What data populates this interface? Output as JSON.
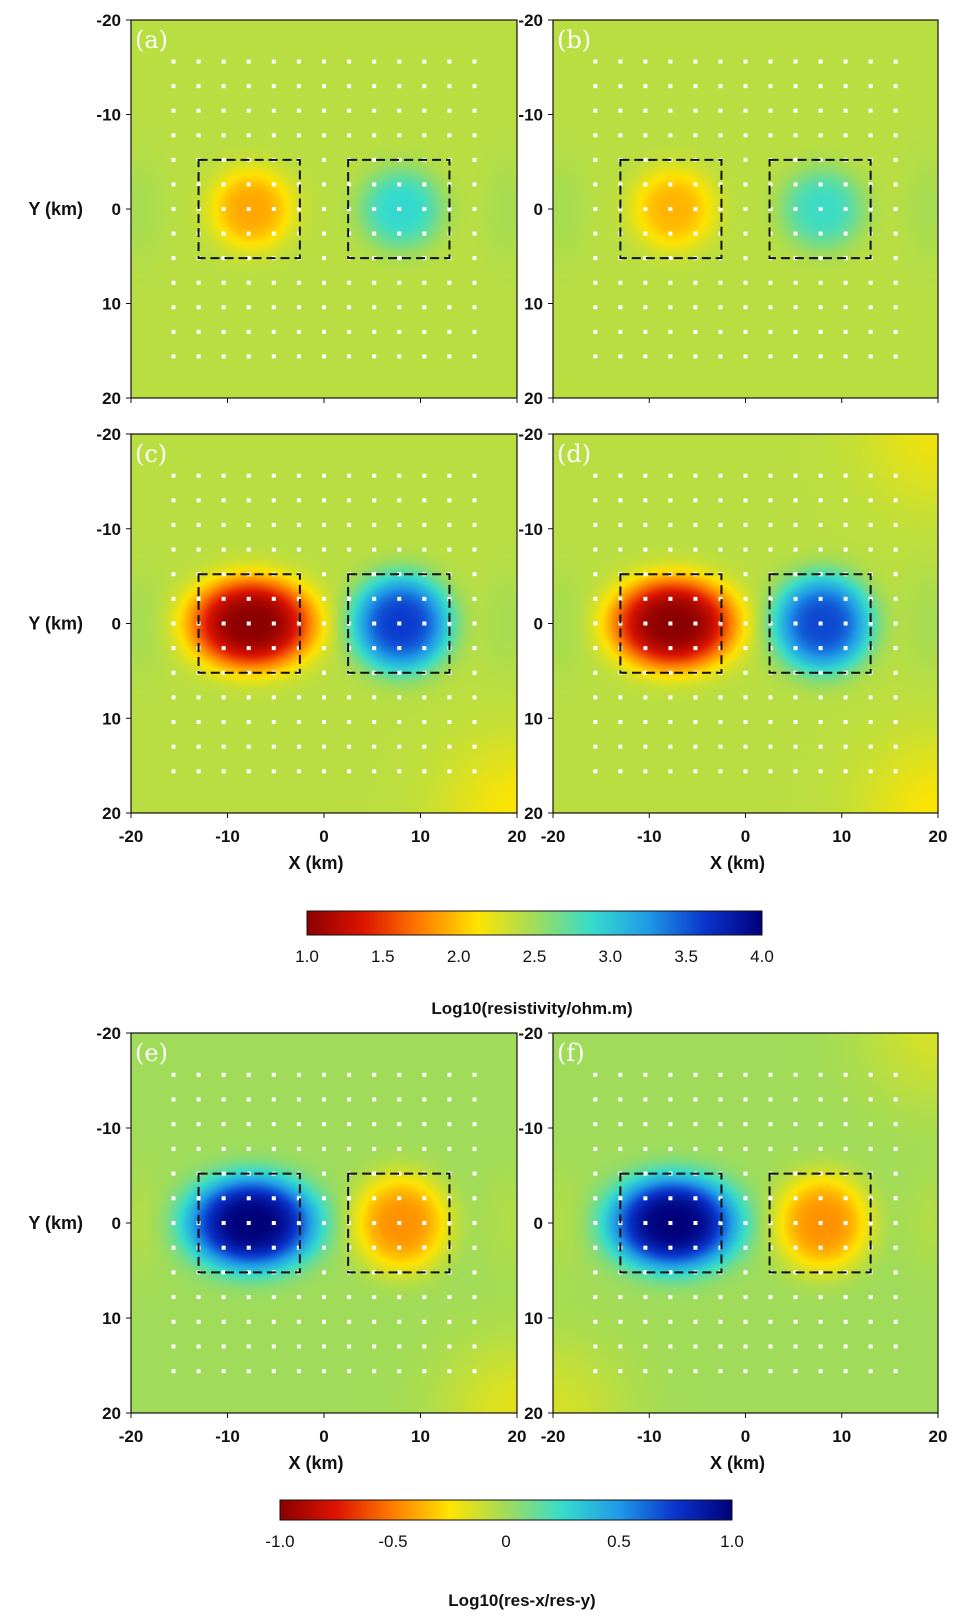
{
  "chart_data": {
    "type": "heatmap",
    "grid": false,
    "panels": [
      {
        "label": "(a)",
        "colorscale": "res",
        "left": {
          "center": [
            -7.5,
            0
          ],
          "value": 1.9,
          "spread": [
            4.2,
            4.2
          ]
        },
        "right": {
          "center": [
            8,
            0
          ],
          "value": 2.9,
          "spread": [
            4.2,
            4.2
          ]
        },
        "tint": [
          0,
          0,
          0,
          0
        ],
        "ylabel": "Y (km)",
        "xlabel": ""
      },
      {
        "label": "(b)",
        "colorscale": "res",
        "left": {
          "center": [
            -7.5,
            0
          ],
          "value": 1.95,
          "spread": [
            4.2,
            4.2
          ]
        },
        "right": {
          "center": [
            8,
            0
          ],
          "value": 2.85,
          "spread": [
            4.2,
            4.2
          ]
        },
        "tint": [
          0,
          0,
          0,
          0
        ],
        "ylabel": "",
        "xlabel": ""
      },
      {
        "label": "(c)",
        "colorscale": "res",
        "left": {
          "center": [
            -7.5,
            0
          ],
          "value": 1.0,
          "spread": [
            6.3,
            4.7
          ]
        },
        "right": {
          "center": [
            8,
            0
          ],
          "value": 3.6,
          "spread": [
            5.0,
            5.0
          ]
        },
        "tint": [
          0,
          0,
          0,
          0.25
        ],
        "ylabel": "Y (km)",
        "xlabel": "X (km)"
      },
      {
        "label": "(d)",
        "colorscale": "res",
        "left": {
          "center": [
            -7.5,
            0
          ],
          "value": 1.0,
          "spread": [
            6.3,
            4.7
          ]
        },
        "right": {
          "center": [
            8,
            0
          ],
          "value": 3.55,
          "spread": [
            5.0,
            5.0
          ]
        },
        "tint": [
          0,
          0.2,
          0,
          0.25
        ],
        "ylabel": "",
        "xlabel": "X (km)"
      },
      {
        "label": "(e)",
        "colorscale": "ratio",
        "left": {
          "center": [
            -7.5,
            0
          ],
          "value": 1.0,
          "spread": [
            6.5,
            4.8
          ]
        },
        "right": {
          "center": [
            8,
            0
          ],
          "value": -0.45,
          "spread": [
            4.8,
            5.0
          ]
        },
        "tint": [
          0,
          0,
          0,
          0.25
        ],
        "ylabel": "Y (km)",
        "xlabel": "X (km)"
      },
      {
        "label": "(f)",
        "colorscale": "ratio",
        "left": {
          "center": [
            -7.5,
            0
          ],
          "value": 1.0,
          "spread": [
            6.5,
            4.8
          ]
        },
        "right": {
          "center": [
            8,
            0
          ],
          "value": -0.45,
          "spread": [
            4.8,
            5.0
          ]
        },
        "tint": [
          0,
          0.2,
          0.2,
          0
        ],
        "ylabel": "",
        "xlabel": "X (km)"
      }
    ],
    "xlim": [
      -20,
      20
    ],
    "ylim": [
      -20,
      20
    ],
    "xticks": [
      "-20",
      "-10",
      "0",
      "10",
      "20"
    ],
    "yticks": [
      "-20",
      "-10",
      "0",
      "10",
      "20"
    ],
    "stations": {
      "x_from": -15.6,
      "x_to": 15.6,
      "x_step": 2.6,
      "y_from": -15.6,
      "y_to": 15.6,
      "y_step": 2.6,
      "gap_rows": [
        -2.6,
        0,
        2.6
      ]
    },
    "anomaly_boxes": [
      {
        "x": [
          -13,
          -2.5
        ],
        "y": [
          -5.2,
          5.2
        ]
      },
      {
        "x": [
          2.5,
          13
        ],
        "y": [
          -5.2,
          5.2
        ]
      }
    ],
    "colorbars": [
      {
        "title": "Log10(resistivity/ohm.m)",
        "range": [
          1.0,
          4.0
        ],
        "ticks": [
          "1.0",
          "1.5",
          "2.0",
          "2.5",
          "3.0",
          "3.5",
          "4.0"
        ],
        "background_value": 2.4
      },
      {
        "title": "Log10(res-x/res-y)",
        "range": [
          -1.0,
          1.0
        ],
        "ticks": [
          "-1.0",
          "-0.5",
          "0",
          "0.5",
          "1.0"
        ],
        "background_value": 0.0
      }
    ]
  },
  "colors": {
    "stops": [
      "#8b0000",
      "#dd1400",
      "#ff7d00",
      "#ffe400",
      "#a0dc5a",
      "#36dccc",
      "#1f9ae8",
      "#0a34cc",
      "#00007a"
    ],
    "background_res": "#6ece8a",
    "station": "#ffffff",
    "box": "#111111"
  }
}
